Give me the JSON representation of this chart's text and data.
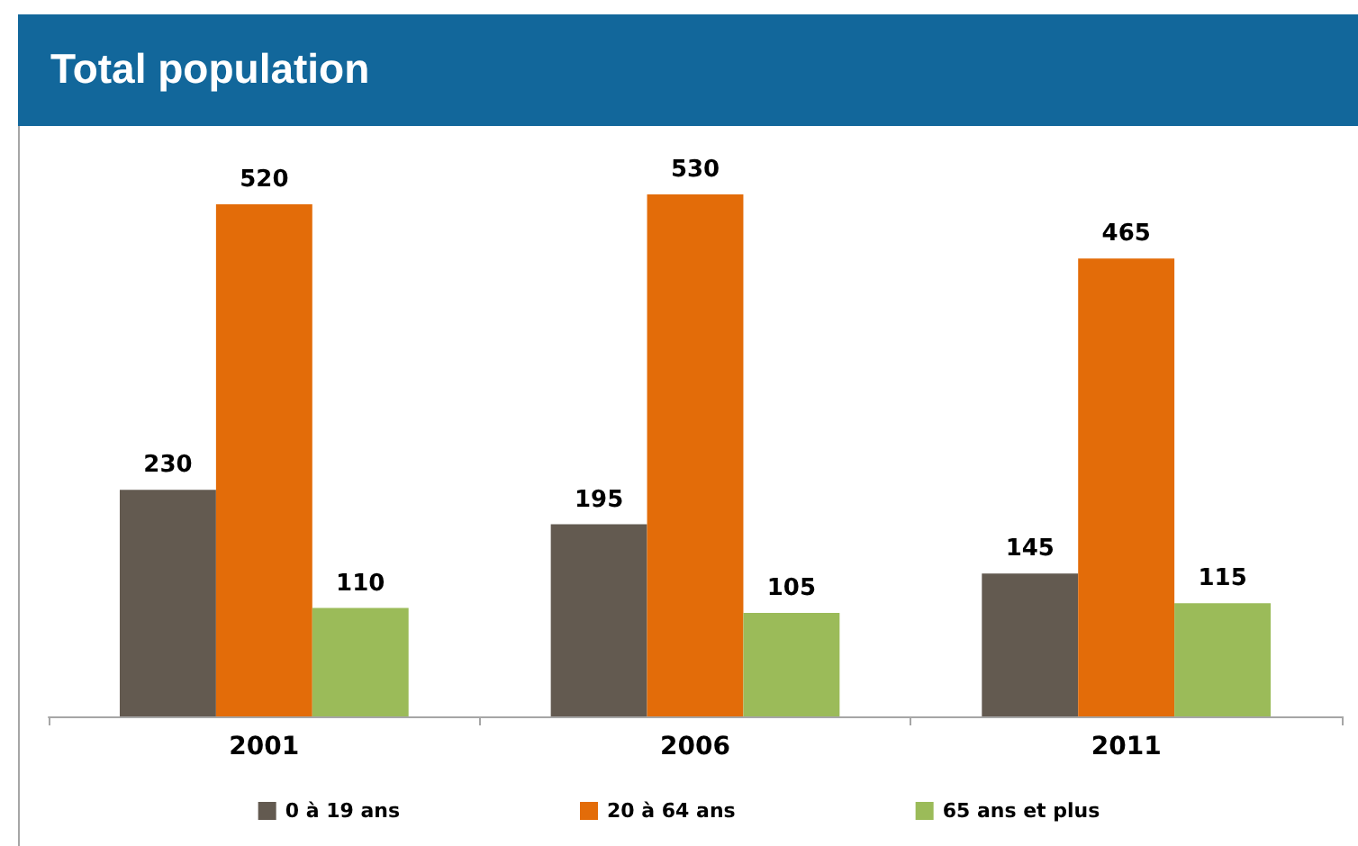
{
  "chart_data": {
    "type": "bar",
    "title": "Total population",
    "categories": [
      "2001",
      "2006",
      "2011"
    ],
    "series": [
      {
        "name": "0 à 19 ans",
        "color": "#635a50",
        "values": [
          230,
          195,
          145
        ]
      },
      {
        "name": "20 à 64 ans",
        "color": "#e36c09",
        "values": [
          520,
          530,
          465
        ]
      },
      {
        "name": "65 ans et plus",
        "color": "#9bbb59",
        "values": [
          110,
          105,
          115
        ]
      }
    ],
    "data_labels": true,
    "legend": "bottom"
  }
}
